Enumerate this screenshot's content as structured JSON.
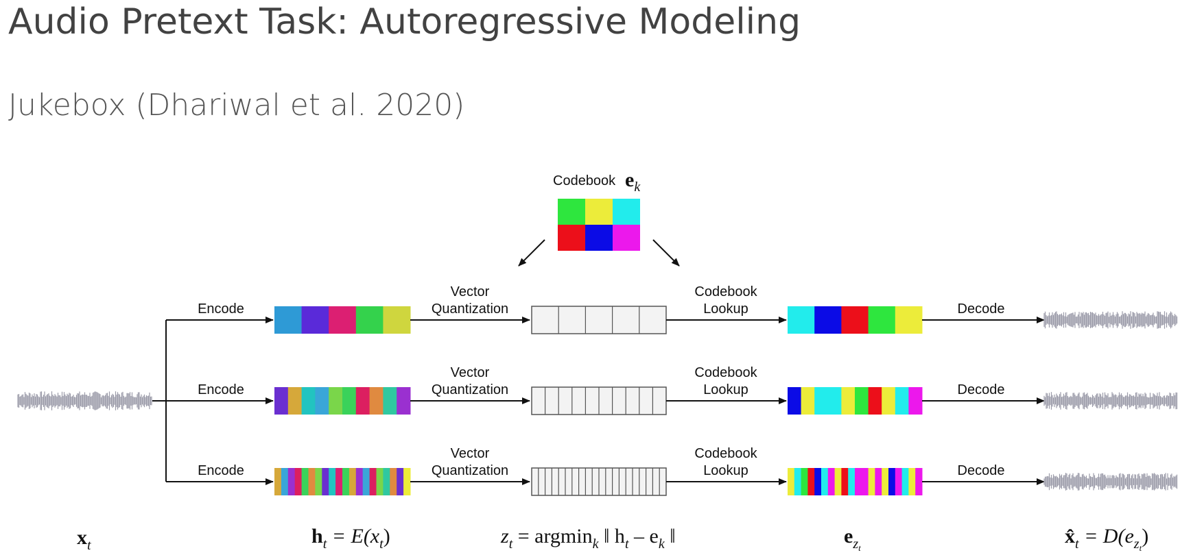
{
  "slide": {
    "title": "Audio Pretext Task: Autoregressive Modeling",
    "subtitle": "Jukebox (Dhariwal et al. 2020)"
  },
  "diagram": {
    "codebook_label": "Codebook",
    "codebook_colors": [
      "#2ee63e",
      "#ecec3a",
      "#22ecec",
      "#ec0f1a",
      "#0b0be6",
      "#ec18ec"
    ],
    "encode_label": "Encode",
    "vq_label_line1": "Vector",
    "vq_label_line2": "Quantization",
    "lookup_label_line1": "Codebook",
    "lookup_label_line2": "Lookup",
    "decode_label": "Decode",
    "rows": [
      {
        "level": "top",
        "h_colors": [
          "#2e9ad6",
          "#5a2ad9",
          "#dc1f72",
          "#34d24c",
          "#cfd63e"
        ],
        "z_cells": 5,
        "e_colors": [
          "#22ecec",
          "#0b0be6",
          "#ec0f1a",
          "#2ee63e",
          "#ecec3a"
        ]
      },
      {
        "level": "middle",
        "h_colors": [
          "#6a2fd0",
          "#d6a83a",
          "#22c4c0",
          "#3aa6d8",
          "#7ad64a",
          "#3ad25a",
          "#dc1f60",
          "#e08a40",
          "#30c8a0",
          "#9a30d0"
        ],
        "z_cells": 10,
        "e_colors": [
          "#0b0be6",
          "#ecec3a",
          "#22ecec",
          "#22ecec",
          "#ecec3a",
          "#2ee63e",
          "#ec0f1a",
          "#ecec3a",
          "#22ecec",
          "#ec18ec"
        ]
      },
      {
        "level": "bottom",
        "h_colors": [
          "#d6a83a",
          "#3aa6d8",
          "#9a30d0",
          "#dc1f60",
          "#3ad25a",
          "#e08a40",
          "#7ad64a",
          "#6a2fd0",
          "#22c4c0",
          "#dc1f72",
          "#3ad25a",
          "#d6a83a",
          "#9a30d0",
          "#3aa6d8",
          "#dc1f60",
          "#7ad64a",
          "#30c8a0",
          "#e08a40",
          "#6a2fd0",
          "#ecec3a"
        ],
        "z_cells": 20,
        "e_colors": [
          "#ecec3a",
          "#22ecec",
          "#2ee63e",
          "#ec0f1a",
          "#0b0be6",
          "#22ecec",
          "#ec18ec",
          "#ecec3a",
          "#ec0f1a",
          "#22ecec",
          "#ec18ec",
          "#ec18ec",
          "#ecec3a",
          "#ec18ec",
          "#ecec3a",
          "#0b0be6",
          "#ec18ec",
          "#22ecec",
          "#ecec3a",
          "#ec18ec"
        ]
      }
    ],
    "waveform_color": "#9a9aa8",
    "math": {
      "x_t": "x",
      "h_t": "h",
      "h_t_rhs": " = E(x",
      "z_t": "z",
      "argmin": " = argmin",
      "e_z": "e",
      "xhat_t": "x̂",
      "xhat_rhs": " = D(e",
      "sub_t": "t",
      "sub_k": "k",
      "sub_zt": "z",
      "norm_open": " ‖ h",
      "norm_minus": " – e",
      "norm_close": " ‖",
      "close_paren": ")"
    }
  }
}
